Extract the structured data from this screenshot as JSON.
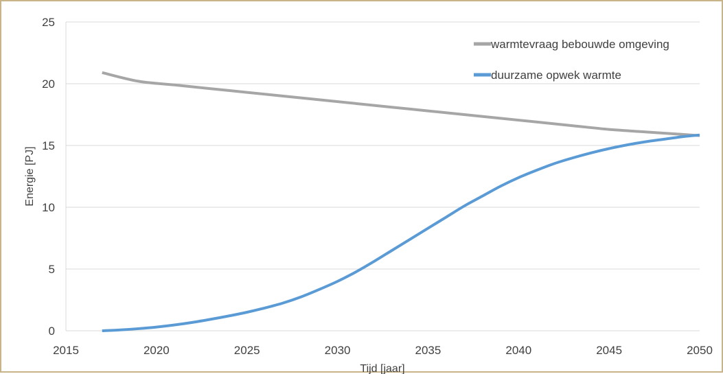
{
  "chart_data": {
    "type": "line",
    "title": "",
    "xlabel": "Tijd [jaar]",
    "ylabel": "Energie [PJ]",
    "xlim": [
      2015,
      2050
    ],
    "ylim": [
      0,
      25
    ],
    "x_ticks": [
      2015,
      2020,
      2025,
      2030,
      2035,
      2040,
      2045,
      2050
    ],
    "y_ticks": [
      0,
      5,
      10,
      15,
      20,
      25
    ],
    "grid": "horizontal",
    "legend_position": "top-right",
    "series": [
      {
        "name": "warmtevraag bebouwde omgeving",
        "color": "#a6a6a6",
        "x": [
          2017,
          2019,
          2021,
          2023,
          2025,
          2027,
          2029,
          2031,
          2033,
          2035,
          2037,
          2039,
          2041,
          2043,
          2045,
          2047,
          2049,
          2050
        ],
        "y": [
          20.9,
          20.2,
          19.9,
          19.6,
          19.3,
          19.0,
          18.7,
          18.4,
          18.1,
          17.8,
          17.5,
          17.2,
          16.9,
          16.6,
          16.3,
          16.1,
          15.9,
          15.8
        ]
      },
      {
        "name": "duurzame opwek warmte",
        "color": "#5b9bd5",
        "x": [
          2017,
          2018,
          2019,
          2020,
          2021,
          2022,
          2023,
          2024,
          2025,
          2026,
          2027,
          2028,
          2029,
          2030,
          2031,
          2032,
          2033,
          2034,
          2035,
          2036,
          2037,
          2038,
          2039,
          2040,
          2041,
          2042,
          2043,
          2044,
          2045,
          2046,
          2047,
          2048,
          2049,
          2050
        ],
        "y": [
          0.0,
          0.07,
          0.17,
          0.3,
          0.47,
          0.68,
          0.93,
          1.2,
          1.5,
          1.85,
          2.25,
          2.75,
          3.35,
          4.0,
          4.75,
          5.6,
          6.5,
          7.4,
          8.3,
          9.2,
          10.1,
          10.9,
          11.7,
          12.4,
          13.0,
          13.55,
          14.0,
          14.4,
          14.75,
          15.05,
          15.3,
          15.5,
          15.7,
          15.85
        ]
      }
    ]
  }
}
